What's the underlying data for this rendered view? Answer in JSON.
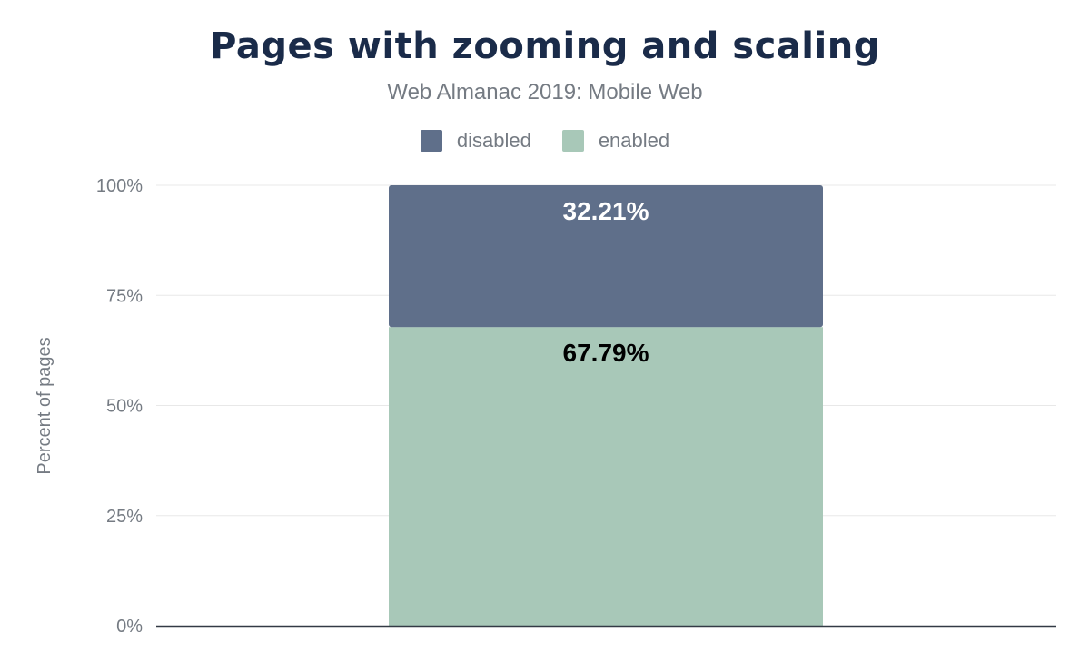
{
  "chart_data": {
    "type": "bar",
    "stacked": true,
    "title": "Pages with zooming and scaling",
    "subtitle": "Web Almanac 2019: Mobile Web",
    "xlabel": "",
    "ylabel": "Percent of pages",
    "ylim": [
      0,
      100
    ],
    "yticks": [
      "0%",
      "25%",
      "50%",
      "75%",
      "100%"
    ],
    "grid": true,
    "legend_position": "top",
    "categories": [
      ""
    ],
    "series": [
      {
        "name": "disabled",
        "values": [
          32.21
        ],
        "label": "32.21%",
        "color": "#5f6f8a",
        "label_color": "#ffffff"
      },
      {
        "name": "enabled",
        "values": [
          67.79
        ],
        "label": "67.79%",
        "color": "#a8c8b8",
        "label_color": "#000000"
      }
    ]
  }
}
